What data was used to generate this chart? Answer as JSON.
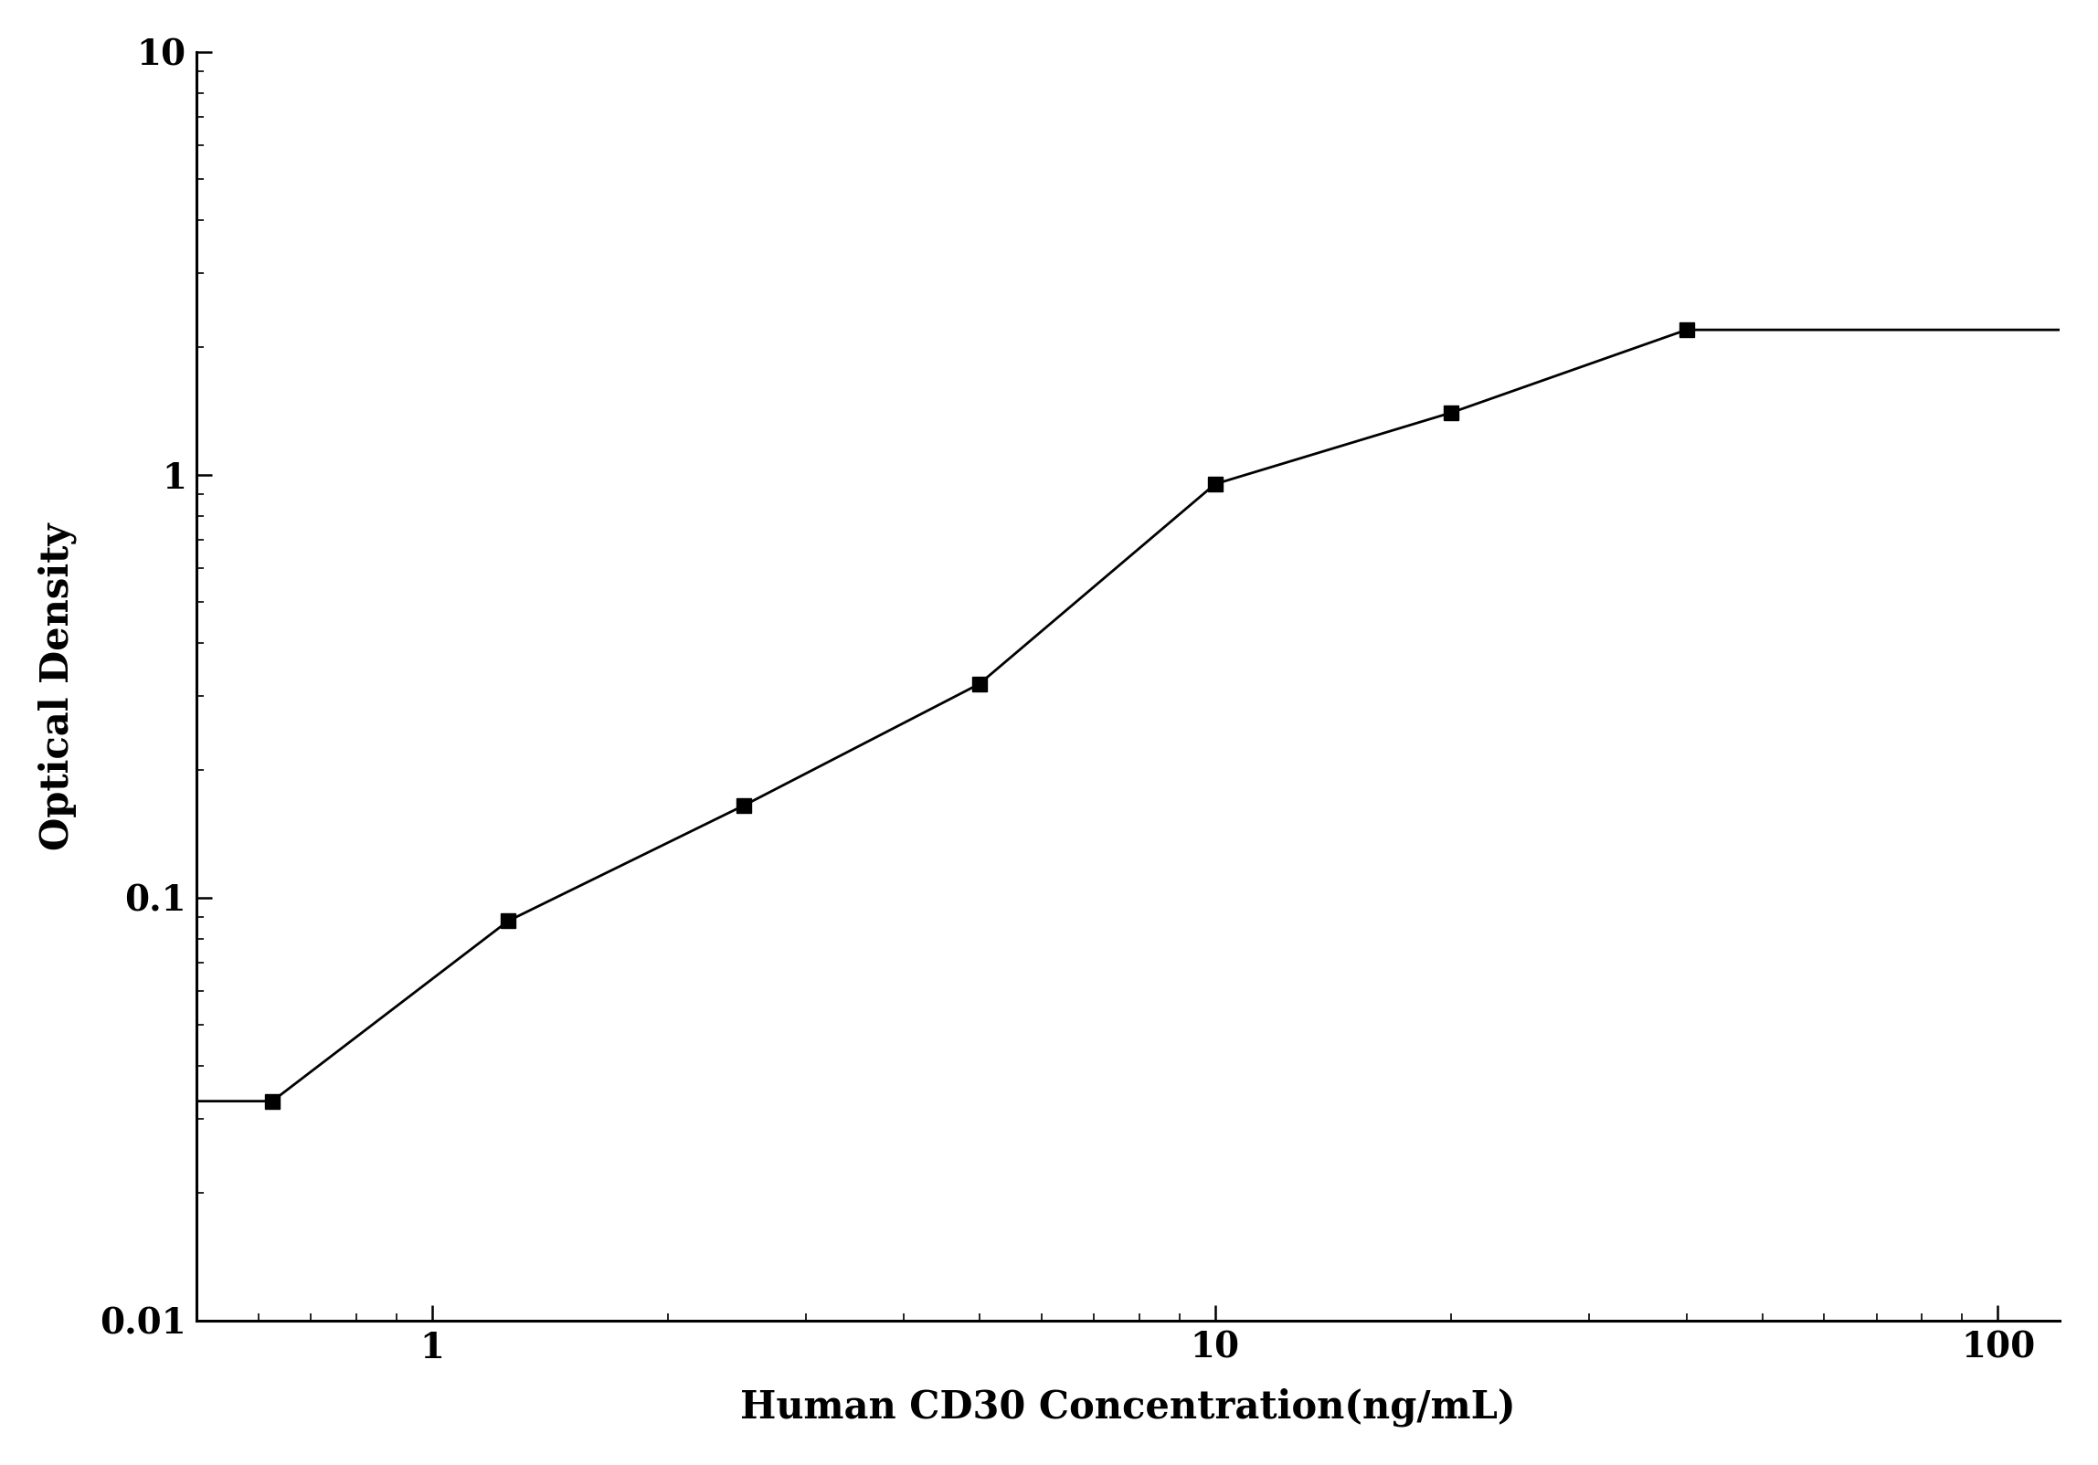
{
  "x_data": [
    0.625,
    1.25,
    2.5,
    5.0,
    10.0,
    20.0,
    40.0
  ],
  "y_data": [
    0.033,
    0.088,
    0.165,
    0.32,
    0.95,
    1.4,
    2.2
  ],
  "x_label": "Human CD30 Concentration(ng/mL)",
  "y_label": "Optical Density",
  "x_lim": [
    0.5,
    120
  ],
  "y_lim": [
    0.01,
    10
  ],
  "x_ticks": [
    1,
    10,
    100
  ],
  "y_ticks": [
    0.01,
    0.1,
    1,
    10
  ],
  "line_color": "#000000",
  "marker_color": "#000000",
  "marker": "s",
  "marker_size": 12,
  "line_width": 2.0,
  "background_color": "#ffffff",
  "xlabel_fontsize": 30,
  "ylabel_fontsize": 30,
  "tick_fontsize": 28
}
